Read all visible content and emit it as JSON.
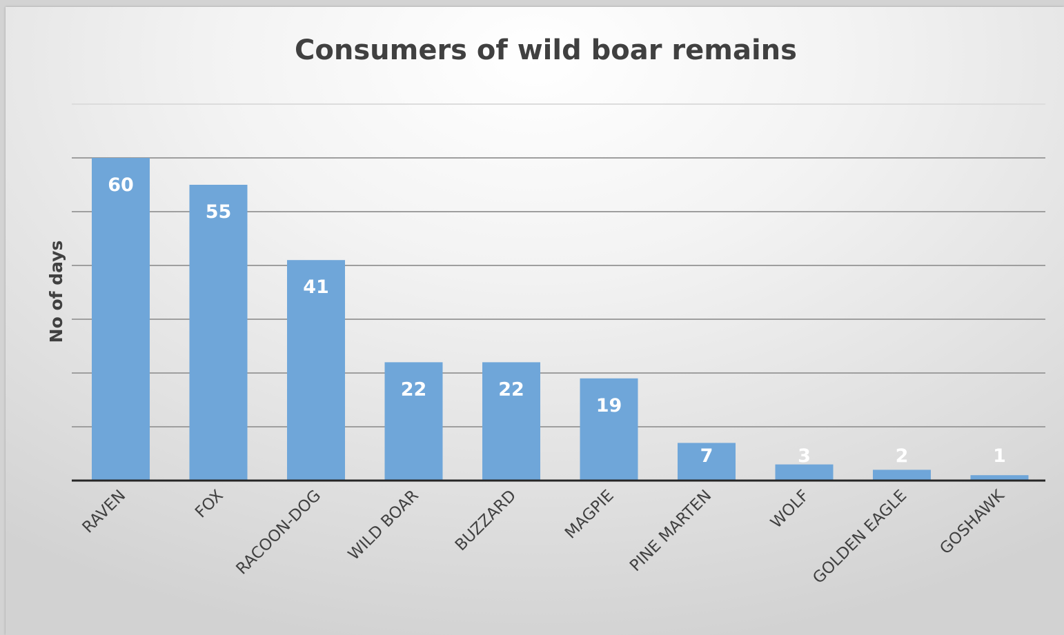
{
  "chart_data": {
    "type": "bar",
    "title": "Consumers of wild boar remains",
    "xlabel": "",
    "ylabel": "No of days",
    "categories": [
      "RAVEN",
      "FOX",
      "RACOON-DOG",
      "WILD BOAR",
      "BUZZARD",
      "MAGPIE",
      "PINE MARTEN",
      "WOLF",
      "GOLDEN EAGLE",
      "GOSHAWK"
    ],
    "values": [
      60,
      55,
      41,
      22,
      22,
      19,
      7,
      3,
      2,
      1
    ],
    "ylim": [
      0,
      70
    ],
    "grid": true,
    "tick_labels_shown": false,
    "data_labels": true,
    "legend": "none",
    "colors": {
      "bar": "#6fa6d9",
      "gridline": "#9e9e9e",
      "axis": "#262626",
      "title": "#404040",
      "data_label": "#ffffff"
    }
  }
}
